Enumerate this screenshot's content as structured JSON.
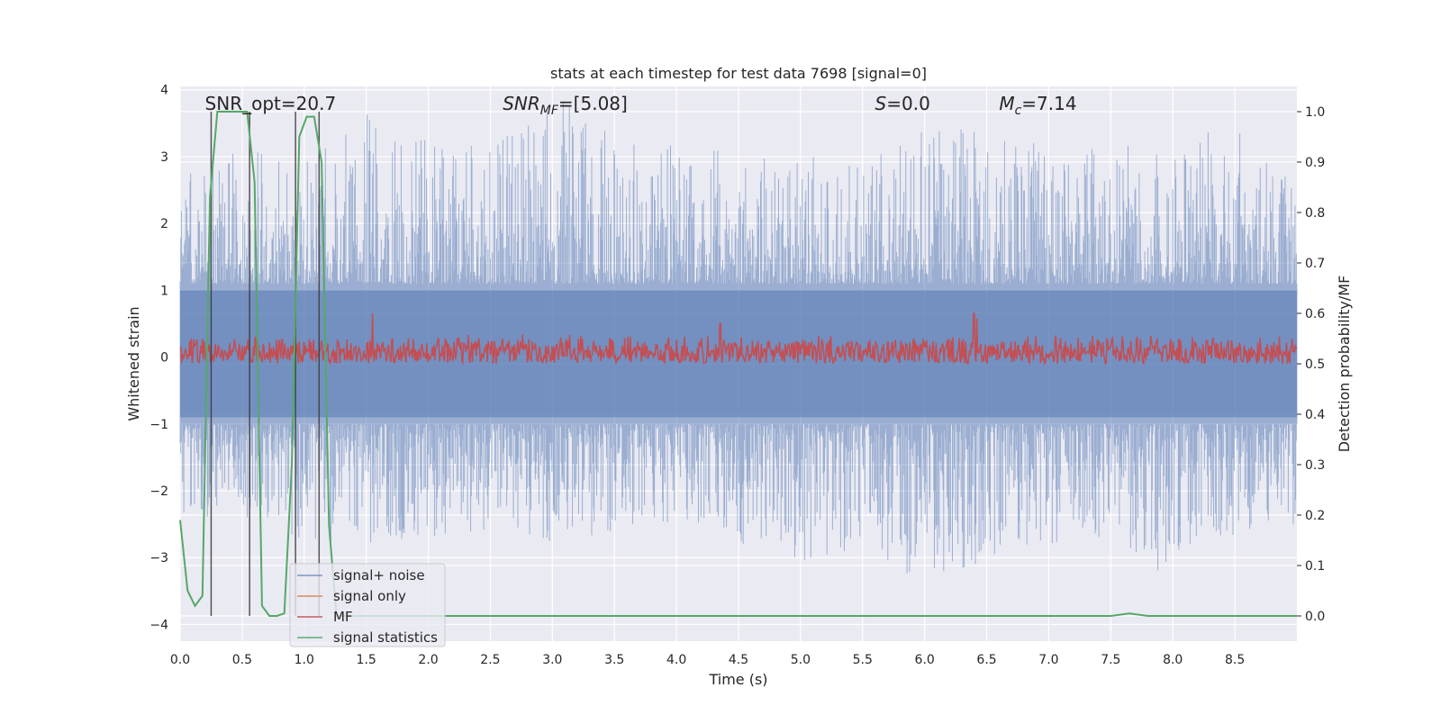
{
  "chart_data": {
    "type": "line",
    "title": "stats at each timestep for test data 7698 [signal=0]",
    "xlabel": "Time (s)",
    "ylabel_left": "Whitened strain",
    "ylabel_right": "Detection probability/MF",
    "xlim": [
      0.0,
      9.0
    ],
    "ylim_left": [
      -4.25,
      4.05
    ],
    "ylim_right": [
      -0.05,
      1.05
    ],
    "x_ticks": [
      "0.0",
      "0.5",
      "1.0",
      "1.5",
      "2.0",
      "2.5",
      "3.0",
      "3.5",
      "4.0",
      "4.5",
      "5.0",
      "5.5",
      "6.0",
      "6.5",
      "7.0",
      "7.5",
      "8.0",
      "8.5"
    ],
    "y_ticks_left": [
      "−4",
      "−3",
      "−2",
      "−1",
      "0",
      "1",
      "2",
      "3",
      "4"
    ],
    "y_ticks_right": [
      "0.0",
      "0.1",
      "0.2",
      "0.3",
      "0.4",
      "0.5",
      "0.6",
      "0.7",
      "0.8",
      "0.9",
      "1.0"
    ],
    "grid": true,
    "legend_position": "lower-left",
    "annotations": [
      {
        "text": "SNR_opt=20.7",
        "x": 0.2
      },
      {
        "text": "SNR_MF=[5.08]",
        "x": 2.6
      },
      {
        "text": "S=0.0",
        "x": 5.6
      },
      {
        "text": "M_c=7.14",
        "x": 6.6
      }
    ],
    "series": [
      {
        "name": "signal+ noise",
        "color": "#4c72b0",
        "axis": "left",
        "style": "noise band (sampled)",
        "envelope_upper": [
          [
            0.0,
            2.8
          ],
          [
            0.5,
            3.1
          ],
          [
            1.0,
            3.0
          ],
          [
            1.45,
            3.7
          ],
          [
            2.0,
            3.3
          ],
          [
            2.5,
            3.2
          ],
          [
            2.97,
            4.0
          ],
          [
            3.5,
            3.3
          ],
          [
            4.0,
            3.2
          ],
          [
            4.5,
            3.2
          ],
          [
            5.0,
            3.0
          ],
          [
            5.5,
            3.0
          ],
          [
            6.03,
            3.7
          ],
          [
            6.5,
            3.3
          ],
          [
            7.0,
            3.2
          ],
          [
            7.5,
            3.2
          ],
          [
            7.95,
            3.2
          ],
          [
            8.5,
            3.5
          ],
          [
            9.0,
            2.6
          ]
        ],
        "envelope_lower": [
          [
            0.0,
            -2.4
          ],
          [
            0.5,
            -2.4
          ],
          [
            1.0,
            -2.8
          ],
          [
            1.5,
            -2.8
          ],
          [
            2.0,
            -2.7
          ],
          [
            2.5,
            -2.6
          ],
          [
            3.0,
            -2.8
          ],
          [
            3.5,
            -2.6
          ],
          [
            4.0,
            -2.5
          ],
          [
            4.5,
            -2.8
          ],
          [
            5.0,
            -3.1
          ],
          [
            5.5,
            -2.9
          ],
          [
            5.92,
            -3.3
          ],
          [
            6.5,
            -3.1
          ],
          [
            7.0,
            -2.8
          ],
          [
            7.5,
            -2.7
          ],
          [
            7.97,
            -3.4
          ],
          [
            8.5,
            -2.7
          ],
          [
            9.0,
            -2.5
          ]
        ]
      },
      {
        "name": "signal only",
        "color": "#dd8452",
        "axis": "left",
        "values": []
      },
      {
        "name": "MF",
        "color": "#c44e52",
        "axis": "right",
        "baseline": 0.53,
        "range": [
          0.5,
          0.56
        ],
        "peaks": [
          [
            1.55,
            0.6
          ],
          [
            6.4,
            0.6
          ],
          [
            6.42,
            0.59
          ],
          [
            4.35,
            0.58
          ]
        ]
      },
      {
        "name": "signal statistics",
        "color": "#55a868",
        "axis": "right",
        "x": [
          0.0,
          0.06,
          0.12,
          0.18,
          0.24,
          0.3,
          0.36,
          0.42,
          0.48,
          0.54,
          0.6,
          0.66,
          0.72,
          0.78,
          0.84,
          0.9,
          0.96,
          1.02,
          1.08,
          1.14,
          1.2,
          1.26,
          1.32,
          1.38,
          1.5,
          2.0,
          3.0,
          4.0,
          5.0,
          6.0,
          7.0,
          7.5,
          7.65,
          7.8,
          8.0,
          9.0
        ],
        "values": [
          0.19,
          0.05,
          0.02,
          0.04,
          0.83,
          1.0,
          1.0,
          1.0,
          1.0,
          1.0,
          0.86,
          0.02,
          0.0,
          0.0,
          0.005,
          0.3,
          0.95,
          0.99,
          0.99,
          0.9,
          0.18,
          0.0,
          0.0,
          0.0,
          0.0,
          0.0,
          0.0,
          0.0,
          0.0,
          0.0,
          0.0,
          0.0,
          0.005,
          0.0,
          0.0,
          0.0
        ]
      }
    ],
    "vertical_lines": [
      0.25,
      0.56,
      0.93,
      1.12
    ]
  }
}
